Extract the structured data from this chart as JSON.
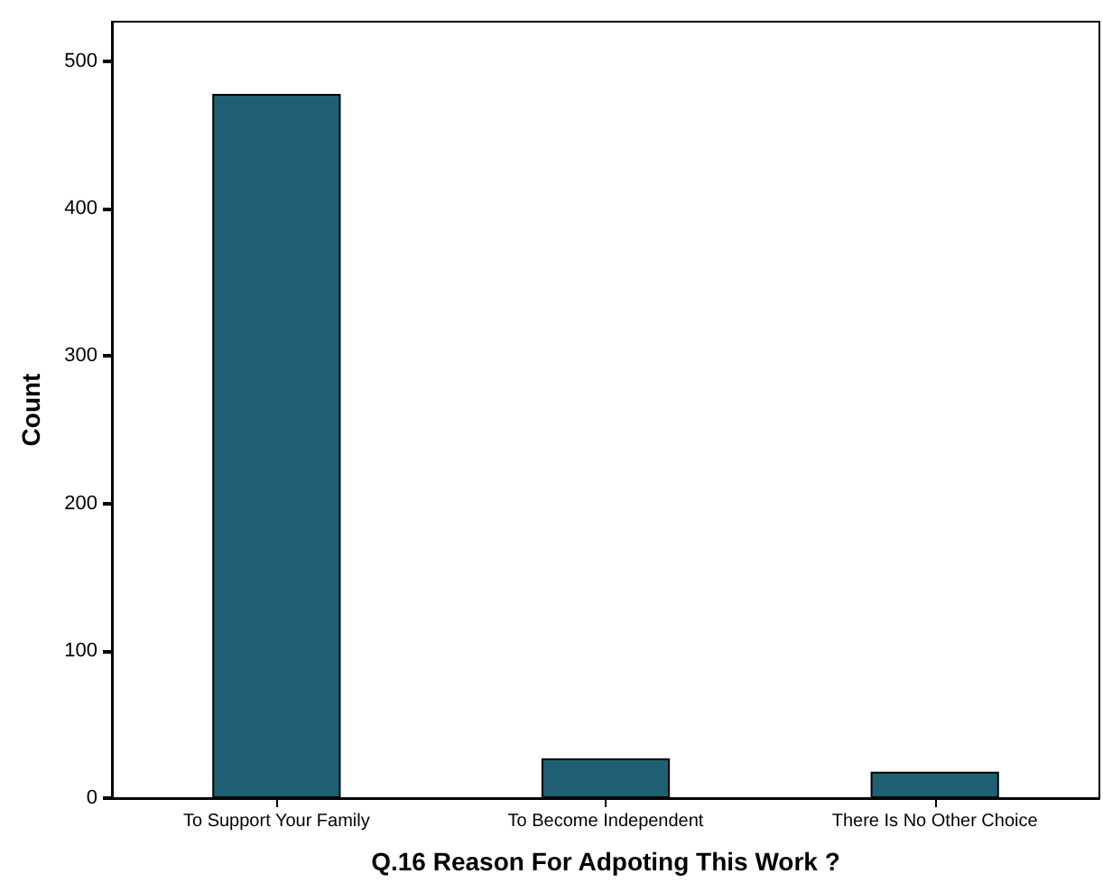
{
  "chart_data": {
    "type": "bar",
    "xlabel": "Q.16 Reason For Adpoting This Work ?",
    "ylabel": "Count",
    "categories": [
      "To Support Your Family",
      "To Become Independent",
      "There Is No Other Choice"
    ],
    "values": [
      478,
      27,
      18
    ],
    "color": "#1f5f73",
    "ylim": [
      0,
      527
    ],
    "yticks": [
      0,
      100,
      200,
      300,
      400,
      500
    ],
    "grid": false
  }
}
